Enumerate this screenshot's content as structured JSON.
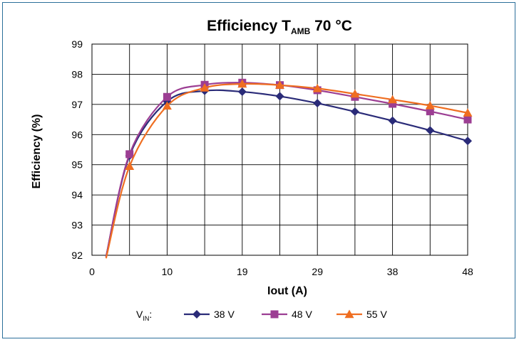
{
  "chart_data": {
    "type": "line",
    "title": {
      "main": "Efficiency T",
      "subscript": "AMB",
      "rest": " 70 °C"
    },
    "xlabel": "Iout (A)",
    "ylabel": "Efficiency (%)",
    "ylim": [
      92,
      99
    ],
    "y_ticks": [
      92,
      93,
      94,
      95,
      96,
      97,
      98,
      99
    ],
    "x_range": [
      0,
      48
    ],
    "x_tick_positions": [
      0,
      4.8,
      9.6,
      14.4,
      19.2,
      24,
      28.8,
      33.6,
      38.4,
      43.2,
      48
    ],
    "x_tick_labels": [
      "0",
      "",
      "10",
      "",
      "19",
      "",
      "29",
      "",
      "38",
      "",
      "48"
    ],
    "grid": true,
    "legend": {
      "prefix": "V",
      "prefix_sub": "IN",
      "prefix_suffix": ":",
      "placement": "bottom"
    },
    "series": [
      {
        "name": "38 V",
        "color": "#2a2b78",
        "marker": "diamond",
        "x": [
          1.8,
          4.8,
          9.6,
          14.4,
          19.2,
          24,
          28.8,
          33.6,
          38.4,
          43.2,
          48
        ],
        "y": [
          91.95,
          95.3,
          97.1,
          97.45,
          97.42,
          97.27,
          97.04,
          96.76,
          96.46,
          96.14,
          95.79
        ]
      },
      {
        "name": "48 V",
        "color": "#9c3e93",
        "marker": "square",
        "x": [
          1.8,
          4.8,
          9.6,
          14.4,
          19.2,
          24,
          28.8,
          33.6,
          38.4,
          43.2,
          48
        ],
        "y": [
          91.95,
          95.35,
          97.25,
          97.65,
          97.72,
          97.64,
          97.47,
          97.25,
          97.02,
          96.77,
          96.5
        ]
      },
      {
        "name": "55 V",
        "color": "#ef6e21",
        "marker": "triangle",
        "x": [
          1.8,
          4.8,
          9.6,
          14.4,
          19.2,
          24,
          28.8,
          33.6,
          38.4,
          43.2,
          48
        ],
        "y": [
          91.9,
          94.95,
          96.95,
          97.55,
          97.68,
          97.64,
          97.53,
          97.35,
          97.16,
          96.96,
          96.72
        ]
      }
    ]
  }
}
